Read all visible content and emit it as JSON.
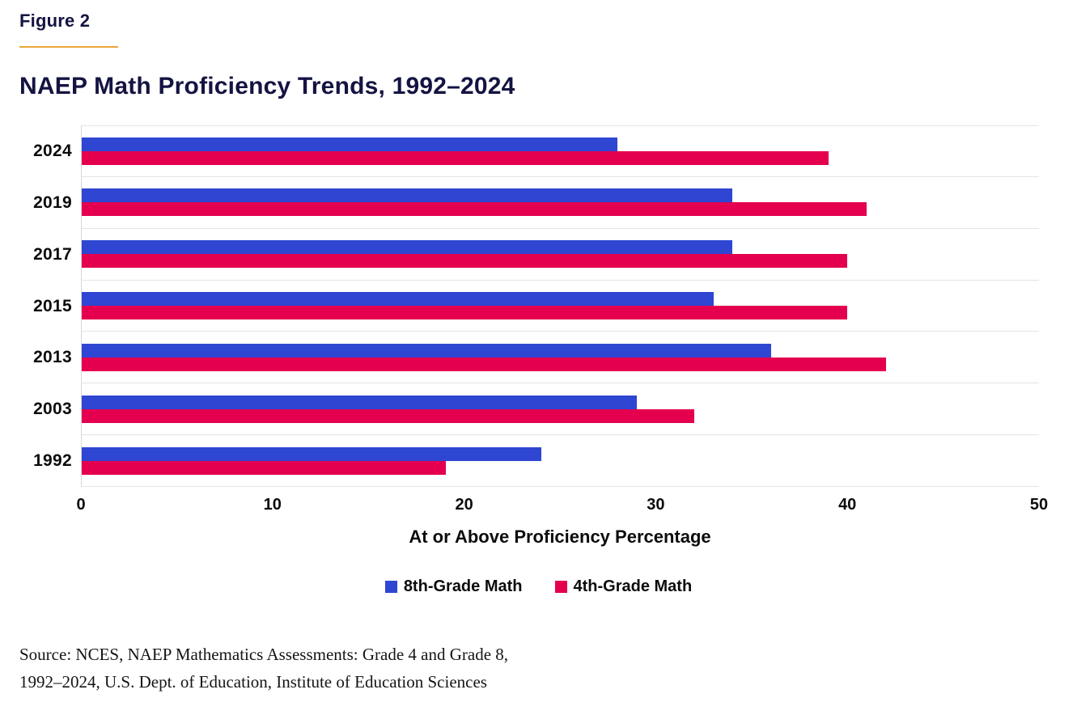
{
  "figure_label": "Figure 2",
  "title": "NAEP Math Proficiency Trends, 1992–2024",
  "chart_data": {
    "type": "bar",
    "orientation": "horizontal",
    "title": "NAEP Math Proficiency Trends, 1992–2024",
    "categories": [
      "2024",
      "2019",
      "2017",
      "2015",
      "2013",
      "2003",
      "1992"
    ],
    "series": [
      {
        "name": "8th-Grade Math",
        "color": "#2e46d2",
        "values": [
          28,
          34,
          34,
          33,
          36,
          29,
          24
        ]
      },
      {
        "name": "4th-Grade Math",
        "color": "#e4004f",
        "values": [
          39,
          41,
          40,
          40,
          42,
          32,
          19
        ]
      }
    ],
    "xlabel": "At or Above Proficiency Percentage",
    "ylabel": "",
    "xlim": [
      0,
      50
    ],
    "x_ticks": [
      0,
      10,
      20,
      30,
      40,
      50
    ],
    "grid": "horizontal band separators only",
    "legend_position": "bottom"
  },
  "source": {
    "line1": "Source: NCES, NAEP Mathematics Assessments: Grade 4 and Grade 8,",
    "line2": "1992–2024, U.S. Dept. of Education, Institute of Education Sciences"
  },
  "colors": {
    "title_navy": "#141442",
    "accent_gold": "#eaa63c",
    "bar_blue": "#2e46d2",
    "bar_red": "#e4004f",
    "text_black": "#0c0c0c",
    "gridline": "#e4e4e4"
  }
}
